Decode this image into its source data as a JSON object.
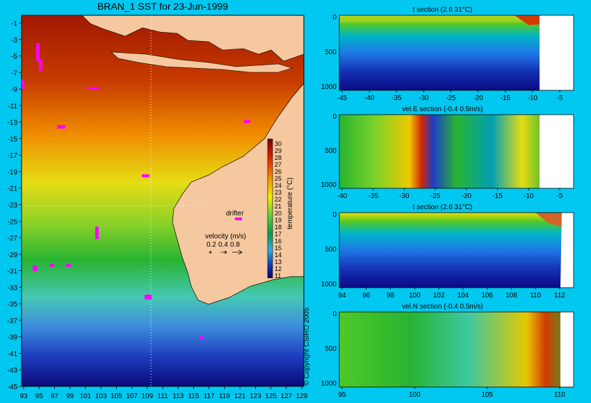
{
  "map": {
    "title": "BRAN_1 SST for 23-Jun-1999",
    "x_ticks": [
      "93",
      "95",
      "97",
      "99",
      "101",
      "103",
      "105",
      "107",
      "109",
      "111",
      "113",
      "115",
      "117",
      "119",
      "121",
      "123",
      "125",
      "127",
      "129"
    ],
    "y_ticks": [
      "-1",
      "-3",
      "-5",
      "-7",
      "-9",
      "-11",
      "-13",
      "-15",
      "-17",
      "-19",
      "-21",
      "-23",
      "-25",
      "-27",
      "-29",
      "-31",
      "-33",
      "-35",
      "-37",
      "-39",
      "-41",
      "-43",
      "-45"
    ],
    "drifter_label": "drifter",
    "velocity_label": "velocity (m/s)",
    "velocity_scale": [
      "0.2",
      "0.4",
      "0.8"
    ],
    "colorbar_label": "temperature (°C)",
    "colorbar_ticks": [
      "30",
      "29",
      "28",
      "27",
      "26",
      "25",
      "24",
      "23",
      "22",
      "21",
      "20",
      "19",
      "18",
      "17",
      "16",
      "15",
      "14",
      "13",
      "12",
      "11"
    ],
    "copyright": "© Copyright CSIRO 2005",
    "colors": {
      "land": "#f5c8a0",
      "drifter": "#ff00ff",
      "frame": "#000000"
    }
  },
  "panels": [
    {
      "title": "t section (2.6      31°C)",
      "x_ticks": [
        "-45",
        "-40",
        "-35",
        "-30",
        "-25",
        "-20",
        "-15",
        "-10",
        "-5"
      ],
      "y_ticks": [
        "0",
        "500",
        "1000"
      ]
    },
    {
      "title": "vel.E section (-0.4      0.5m/s)",
      "x_ticks": [
        "-40",
        "-35",
        "-30",
        "-25",
        "-20",
        "-15",
        "-10",
        "-5"
      ],
      "y_ticks": [
        "0",
        "500",
        "1000"
      ]
    },
    {
      "title": "t section (2.6      31°C)",
      "x_ticks": [
        "94",
        "96",
        "98",
        "100",
        "102",
        "104",
        "106",
        "108",
        "110",
        "112"
      ],
      "y_ticks": [
        "0",
        "500",
        "1000"
      ]
    },
    {
      "title": "vel.N section (-0.4      0.5m/s)",
      "x_ticks": [
        "95",
        "100",
        "105",
        "110"
      ],
      "y_ticks": [
        "0",
        "500",
        "1000"
      ]
    }
  ]
}
